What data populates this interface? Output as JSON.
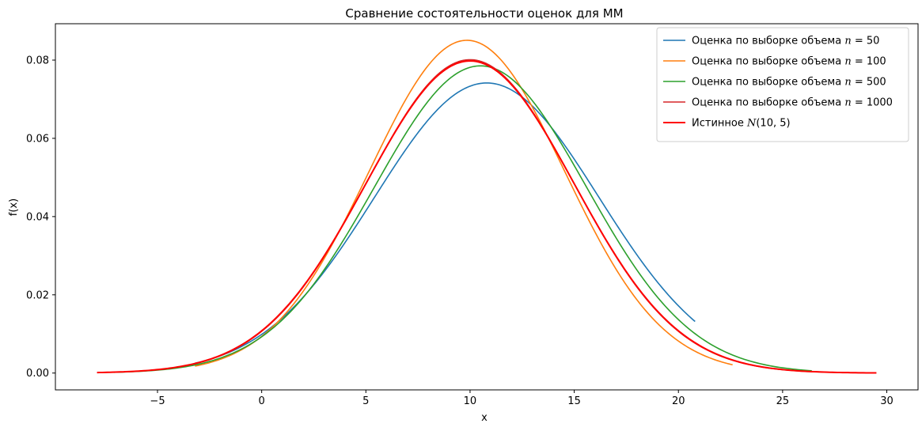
{
  "chart_data": {
    "type": "line",
    "title": "Сравнение состоятельности оценок для ММ",
    "xlabel": "x",
    "ylabel": "f(x)",
    "xlim": [
      -9.9,
      31.5
    ],
    "ylim": [
      -0.0043,
      0.0893
    ],
    "xticks": [
      -5,
      0,
      5,
      10,
      15,
      20,
      25,
      30
    ],
    "xtick_labels": [
      "−5",
      "0",
      "5",
      "10",
      "15",
      "20",
      "25",
      "30"
    ],
    "yticks": [
      0.0,
      0.02,
      0.04,
      0.06,
      0.08
    ],
    "ytick_labels": [
      "0.00",
      "0.02",
      "0.04",
      "0.06",
      "0.08"
    ],
    "grid": false,
    "legend_position": "top-right",
    "series": [
      {
        "name_prefix": "Оценка по выборке объема ",
        "name_var": "n",
        "name_suffix": " = 50",
        "color": "#1f77b4",
        "mu": 10.8,
        "sigma": 5.38,
        "x_start": -3.2,
        "x_end": 20.8,
        "stroke_width": 1.6
      },
      {
        "name_prefix": "Оценка по выборке объема ",
        "name_var": "n",
        "name_suffix": " = 100",
        "color": "#ff7f0e",
        "mu": 9.85,
        "sigma": 4.69,
        "x_start": -3.2,
        "x_end": 22.6,
        "stroke_width": 1.6
      },
      {
        "name_prefix": "Оценка по выборке объема ",
        "name_var": "n",
        "name_suffix": " = 500",
        "color": "#2ca02c",
        "mu": 10.5,
        "sigma": 5.08,
        "x_start": -7.1,
        "x_end": 26.4,
        "stroke_width": 1.6
      },
      {
        "name_prefix": "Оценка по выборке объема ",
        "name_var": "n",
        "name_suffix": " = 1000",
        "color": "#d62728",
        "mu": 10.0,
        "sigma": 4.98,
        "x_start": -7.9,
        "x_end": 29.5,
        "stroke_width": 1.6
      },
      {
        "name_prefix": "Истинное ",
        "name_var": "N",
        "name_suffix": "(10, 5)",
        "color": "#ff0000",
        "mu": 10.0,
        "sigma": 5.0,
        "x_start": -7.9,
        "x_end": 29.5,
        "stroke_width": 2.0
      }
    ]
  }
}
